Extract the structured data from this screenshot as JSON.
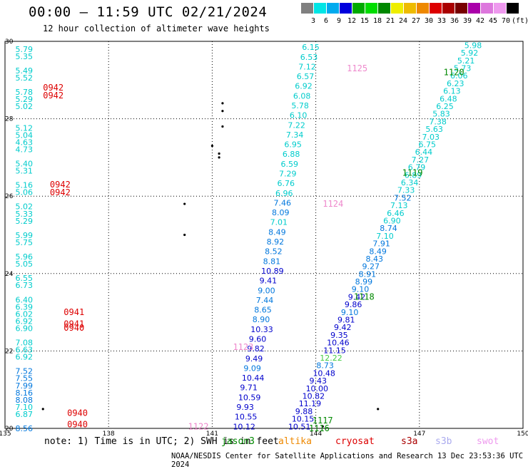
{
  "header": {
    "title": "00:00 – 11:59 UTC 02/21/2024",
    "subtitle": "12 hour collection of altimeter wave heights"
  },
  "color_scale": {
    "labels": [
      "3",
      "6",
      "9",
      "12",
      "15",
      "18",
      "21",
      "24",
      "27",
      "30",
      "33",
      "36",
      "39",
      "42",
      "45",
      "70",
      "(ft)"
    ],
    "colors": [
      "#808080",
      "#00e5e5",
      "#00aaee",
      "#0000dd",
      "#00aa00",
      "#00dd00",
      "#008800",
      "#eeee00",
      "#eebb00",
      "#ee8800",
      "#dd0000",
      "#aa0000",
      "#770000",
      "#aa00aa",
      "#dd77dd",
      "#ee99ee",
      "#000000"
    ]
  },
  "map": {
    "lon_labels": [
      "135",
      "138",
      "141",
      "144",
      "147",
      "150"
    ],
    "lat_labels": [
      "30",
      "28",
      "26",
      "24",
      "22",
      "20"
    ]
  },
  "chart_data": {
    "type": "scatter",
    "x_axis": "longitude",
    "y_axis": "latitude",
    "xlim": [
      135,
      150
    ],
    "ylim": [
      20,
      30
    ],
    "track_labels": [
      {
        "text": "0942",
        "lon": 136.1,
        "lat": 28.8,
        "color": "#dd0000"
      },
      {
        "text": "0942",
        "lon": 136.1,
        "lat": 28.6,
        "color": "#dd0000"
      },
      {
        "text": "0942",
        "lon": 136.3,
        "lat": 26.3,
        "color": "#dd0000"
      },
      {
        "text": "0942",
        "lon": 136.3,
        "lat": 26.1,
        "color": "#dd0000"
      },
      {
        "text": "0941",
        "lon": 136.7,
        "lat": 23.0,
        "color": "#dd0000"
      },
      {
        "text": "0941",
        "lon": 136.7,
        "lat": 22.7,
        "color": "#dd0000"
      },
      {
        "text": "0940",
        "lon": 136.7,
        "lat": 22.6,
        "color": "#dd0000"
      },
      {
        "text": "0940",
        "lon": 136.8,
        "lat": 20.4,
        "color": "#dd0000"
      },
      {
        "text": "0940",
        "lon": 136.8,
        "lat": 20.1,
        "color": "#dd0000"
      },
      {
        "text": "1125",
        "lon": 144.9,
        "lat": 29.3,
        "color": "#ee88cc"
      },
      {
        "text": "1124",
        "lon": 144.2,
        "lat": 25.8,
        "color": "#ee88cc"
      },
      {
        "text": "1123",
        "lon": 141.6,
        "lat": 22.1,
        "color": "#ee88cc"
      },
      {
        "text": "1122",
        "lon": 140.3,
        "lat": 20.05,
        "color": "#ee88cc"
      },
      {
        "text": "1120",
        "lon": 147.7,
        "lat": 29.2,
        "color": "#008800"
      },
      {
        "text": "1119",
        "lon": 146.5,
        "lat": 26.6,
        "color": "#008800"
      },
      {
        "text": "1118",
        "lon": 145.1,
        "lat": 23.4,
        "color": "#008800"
      },
      {
        "text": "1117",
        "lon": 143.9,
        "lat": 20.2,
        "color": "#008800"
      },
      {
        "text": "1116",
        "lon": 143.8,
        "lat": 20.0,
        "color": "#008800"
      }
    ],
    "tracks": [
      {
        "name": "left",
        "lon": 135.3,
        "lat_top": 29.8,
        "lat_bottom": 20.0,
        "values": [
          "5.79",
          "5.35",
          "",
          "5.49",
          "5.52",
          "",
          "5.78",
          "5.29",
          "5.02",
          "",
          "",
          "5.12",
          "5.04",
          "4.63",
          "4.73",
          "",
          "5.40",
          "5.31",
          "",
          "5.16",
          "5.06",
          "",
          "5.02",
          "5.33",
          "5.29",
          "",
          "5.99",
          "5.75",
          "",
          "5.96",
          "5.05",
          "",
          "6.55",
          "6.73",
          "",
          "6.40",
          "6.39",
          "6.02",
          "6.92",
          "6.90",
          "",
          "7.08",
          "6.63",
          "6.92",
          "",
          "7.52",
          "7.55",
          "7.99",
          "8.16",
          "8.08",
          "7.10",
          "6.87",
          "",
          "8.56"
        ]
      },
      {
        "name": "middle",
        "lon_top": 143.6,
        "lat_top": 29.85,
        "lon_bottom": 141.6,
        "lat_bottom": 20.05,
        "values": [
          "6.15",
          "6.53",
          "7.12",
          "6.57",
          "6.92",
          "6.08",
          "5.78",
          "6.10",
          "7.22",
          "7.34",
          "6.95",
          "6.88",
          "6.59",
          "7.29",
          "6.76",
          "6.96",
          "7.46",
          "8.09",
          "7.01",
          "8.49",
          "8.92",
          "8.52",
          "8.81",
          "10.89",
          "9.41",
          "9.00",
          "7.44",
          "8.65",
          "8.90",
          "10.33",
          "9.60",
          "9.82",
          "9.49",
          "9.09",
          "10.44",
          "9.71",
          "10.59",
          "9.93",
          "10.55",
          "10.12"
        ]
      },
      {
        "name": "right",
        "lon_top": 148.3,
        "lat_top": 29.9,
        "lon_bottom": 143.2,
        "lat_bottom": 20.05,
        "values": [
          "5.98",
          "5.92",
          "5.21",
          "5.73",
          "6.06",
          "6.23",
          "6.13",
          "6.48",
          "6.25",
          "5.83",
          "7.38",
          "5.63",
          "7.03",
          "6.75",
          "6.44",
          "7.27",
          "6.79",
          "6.89",
          "6.34",
          "7.33",
          "7.52",
          "7.13",
          "6.46",
          "6.90",
          "8.74",
          "7.10",
          "7.91",
          "8.49",
          "8.43",
          "9.27",
          "8.91",
          "8.99",
          "9.10",
          "9.42",
          "9.86",
          "9.10",
          "9.81",
          "9.42",
          "9.35",
          "10.46",
          "11.15",
          "12.22",
          "8.73",
          "10.48",
          "9.43",
          "10.00",
          "10.82",
          "11.19",
          "9.88",
          "10.15",
          "10.51"
        ]
      }
    ]
  },
  "footer": {
    "note": "note: 1) Time is in UTC; 2) SWH is in feet",
    "satellites": [
      {
        "name": "jason3",
        "color": "#008800"
      },
      {
        "name": "altika",
        "color": "#ee8800"
      },
      {
        "name": "cryosat",
        "color": "#dd0000"
      },
      {
        "name": "s3a",
        "color": "#aa0000"
      },
      {
        "name": "s3b",
        "color": "#aaaaee"
      },
      {
        "name": "swot",
        "color": "#ee99ee"
      }
    ],
    "credit": "NOAA/NESDIS Center for Satellite Applications and Research    13 Dec 23:53:36 UTC 2024"
  }
}
